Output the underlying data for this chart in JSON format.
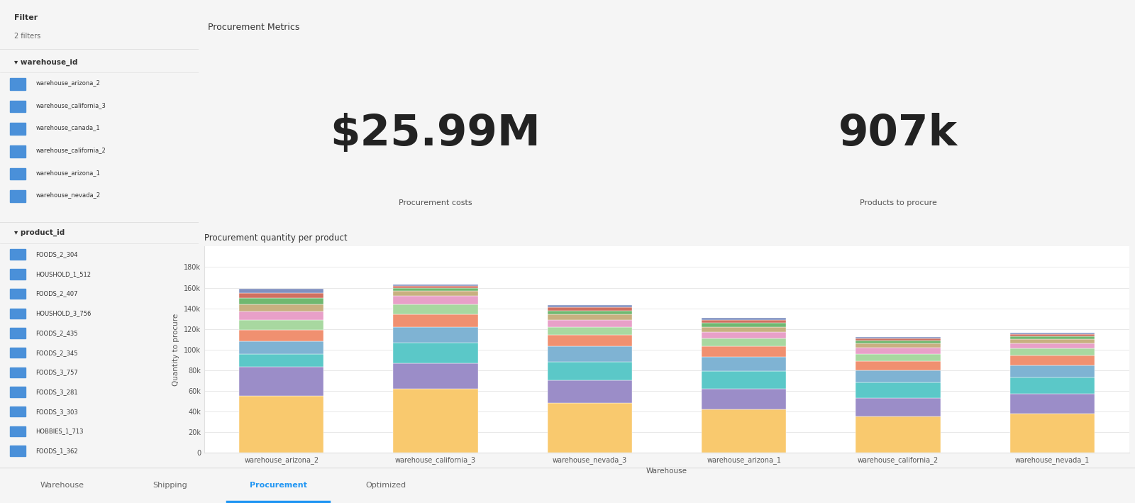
{
  "title": "Procurement Metrics",
  "bg_color": "#f5f5f5",
  "panel_bg": "#ffffff",
  "kpi1_value": "$25.99M",
  "kpi1_label": "Procurement costs",
  "kpi2_value": "907k",
  "kpi2_label": "Products to procure",
  "chart_title": "Procurement quantity per product",
  "chart_ylabel": "Quantity to procure",
  "chart_xlabel": "Warehouse",
  "warehouses": [
    "warehouse_arizona_2",
    "warehouse_california_3",
    "warehouse_nevada_3",
    "warehouse_arizona_1",
    "warehouse_california_2",
    "warehouse_nevada_1"
  ],
  "yticks": [
    0,
    20000,
    40000,
    60000,
    80000,
    100000,
    120000,
    140000,
    160000,
    180000
  ],
  "ytick_labels": [
    "0",
    "20k",
    "40k",
    "60k",
    "80k",
    "100k",
    "120k",
    "140k",
    "160k",
    "180k"
  ],
  "ymax": 200000,
  "stack_colors": [
    "#f9c96e",
    "#9b8dc8",
    "#5bc8c8",
    "#7fb3d3",
    "#f09070",
    "#a8d8a0",
    "#e8a0c8",
    "#c8b080",
    "#70b870",
    "#d07060",
    "#8090c0"
  ],
  "stacks": [
    [
      55000,
      28000,
      13000,
      12000,
      11000,
      10000,
      8000,
      7000,
      6000,
      5000,
      4000
    ],
    [
      62000,
      25000,
      20000,
      15000,
      12000,
      10000,
      8000,
      5000,
      3000,
      2000,
      1000
    ],
    [
      48000,
      22000,
      18000,
      15000,
      11000,
      8000,
      7000,
      5000,
      4000,
      3000,
      2000
    ],
    [
      42000,
      20000,
      17000,
      14000,
      10000,
      8000,
      6000,
      5000,
      4000,
      3000,
      2000
    ],
    [
      35000,
      18000,
      15000,
      12000,
      9000,
      7000,
      6000,
      4000,
      3000,
      2000,
      1000
    ],
    [
      38000,
      19000,
      16000,
      12000,
      9000,
      7000,
      5000,
      4000,
      3000,
      2000,
      1000
    ]
  ],
  "filter_label": "Filter",
  "filter_count": "2 filters",
  "warehouse_items": [
    "warehouse_arizona_2",
    "warehouse_california_3",
    "warehouse_canada_1",
    "warehouse_california_2",
    "warehouse_arizona_1",
    "warehouse_nevada_2"
  ],
  "product_items": [
    "FOODS_2_304",
    "HOUSHOLD_1_512",
    "FOODS_2_407",
    "HOUSHOLD_3_756",
    "FOODS_2_435",
    "FOODS_2_345",
    "FOODS_3_757",
    "FOODS_3_281",
    "FOODS_3_303",
    "HOBBIES_1_713",
    "FOODS_1_362"
  ],
  "tabs": [
    "Warehouse",
    "Shipping",
    "Procurement",
    "Optimized"
  ],
  "active_tab": "Procurement"
}
